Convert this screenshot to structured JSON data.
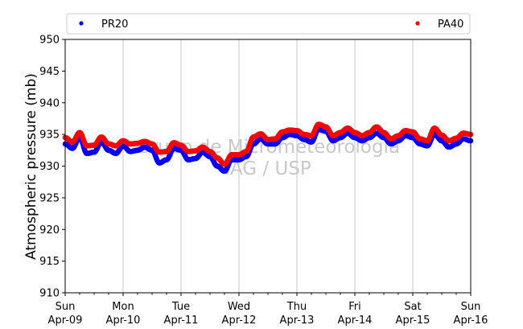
{
  "chart_data": {
    "type": "scatter",
    "ylabel": "Atmospheric pressure (mb)",
    "ylim": [
      910,
      950
    ],
    "yticks": [
      910,
      915,
      920,
      925,
      930,
      935,
      940,
      945,
      950
    ],
    "x_range_days": [
      0,
      7
    ],
    "xticks": [
      {
        "day": 0,
        "line1": "Sun",
        "line2": "Apr-09"
      },
      {
        "day": 1,
        "line1": "Mon",
        "line2": "Apr-10"
      },
      {
        "day": 2,
        "line1": "Tue",
        "line2": "Apr-11"
      },
      {
        "day": 3,
        "line1": "Wed",
        "line2": "Apr-12"
      },
      {
        "day": 4,
        "line1": "Thu",
        "line2": "Apr-13"
      },
      {
        "day": 5,
        "line1": "Fri",
        "line2": "Apr-14"
      },
      {
        "day": 6,
        "line1": "Sat",
        "line2": "Apr-15"
      },
      {
        "day": 7,
        "line1": "Sun",
        "line2": "Apr-16"
      }
    ],
    "grid": "vertical",
    "legend_position": "top",
    "watermark": [
      "Grupo de Micrometeorologia",
      "IAG / USP"
    ],
    "series": [
      {
        "name": "PR20",
        "color": "#0000ff",
        "points": [
          [
            0,
            933.5
          ],
          [
            0.125,
            932.8
          ],
          [
            0.25,
            934.5
          ],
          [
            0.375,
            932.0
          ],
          [
            0.5,
            932.2
          ],
          [
            0.625,
            933.8
          ],
          [
            0.75,
            932.5
          ],
          [
            0.875,
            932.0
          ],
          [
            1.0,
            933.2
          ],
          [
            1.125,
            932.3
          ],
          [
            1.25,
            932.5
          ],
          [
            1.375,
            933.0
          ],
          [
            1.5,
            932.5
          ],
          [
            1.625,
            930.5
          ],
          [
            1.75,
            931.0
          ],
          [
            1.875,
            932.8
          ],
          [
            2.0,
            932.5
          ],
          [
            2.125,
            931.0
          ],
          [
            2.25,
            931.2
          ],
          [
            2.375,
            932.2
          ],
          [
            2.5,
            931.5
          ],
          [
            2.625,
            930.0
          ],
          [
            2.75,
            929.2
          ],
          [
            2.875,
            931.0
          ],
          [
            3.0,
            931.0
          ],
          [
            3.125,
            931.5
          ],
          [
            3.25,
            933.5
          ],
          [
            3.375,
            934.3
          ],
          [
            3.5,
            933.5
          ],
          [
            3.625,
            933.5
          ],
          [
            3.75,
            934.5
          ],
          [
            3.875,
            935.0
          ],
          [
            4.0,
            934.8
          ],
          [
            4.125,
            934.2
          ],
          [
            4.25,
            933.8
          ],
          [
            4.375,
            935.8
          ],
          [
            4.5,
            935.5
          ],
          [
            4.625,
            934.0
          ],
          [
            4.75,
            934.5
          ],
          [
            4.875,
            935.2
          ],
          [
            5.0,
            934.5
          ],
          [
            5.125,
            934.0
          ],
          [
            5.25,
            934.5
          ],
          [
            5.375,
            935.2
          ],
          [
            5.5,
            934.5
          ],
          [
            5.625,
            933.5
          ],
          [
            5.75,
            934.0
          ],
          [
            5.875,
            934.8
          ],
          [
            6.0,
            934.5
          ],
          [
            6.125,
            933.5
          ],
          [
            6.25,
            933.2
          ],
          [
            6.375,
            935.0
          ],
          [
            6.5,
            934.0
          ],
          [
            6.625,
            933.0
          ],
          [
            6.75,
            933.5
          ],
          [
            6.875,
            934.3
          ],
          [
            7.0,
            934.0
          ]
        ]
      },
      {
        "name": "PA40",
        "color": "#ff0000",
        "points": [
          [
            0,
            934.5
          ],
          [
            0.125,
            933.8
          ],
          [
            0.25,
            935.3
          ],
          [
            0.375,
            933.2
          ],
          [
            0.5,
            933.3
          ],
          [
            0.625,
            934.6
          ],
          [
            0.75,
            933.5
          ],
          [
            0.875,
            933.2
          ],
          [
            1.0,
            934.0
          ],
          [
            1.125,
            933.5
          ],
          [
            1.25,
            933.6
          ],
          [
            1.375,
            933.9
          ],
          [
            1.5,
            933.5
          ],
          [
            1.625,
            932.2
          ],
          [
            1.75,
            932.3
          ],
          [
            1.875,
            933.7
          ],
          [
            2.0,
            933.3
          ],
          [
            2.125,
            932.3
          ],
          [
            2.25,
            932.4
          ],
          [
            2.375,
            933.0
          ],
          [
            2.5,
            932.3
          ],
          [
            2.625,
            931.3
          ],
          [
            2.75,
            930.3
          ],
          [
            2.875,
            931.8
          ],
          [
            3.0,
            931.8
          ],
          [
            3.125,
            932.3
          ],
          [
            3.25,
            934.6
          ],
          [
            3.375,
            935.1
          ],
          [
            3.5,
            934.2
          ],
          [
            3.625,
            934.3
          ],
          [
            3.75,
            935.4
          ],
          [
            3.875,
            935.7
          ],
          [
            4.0,
            935.6
          ],
          [
            4.125,
            935.0
          ],
          [
            4.25,
            934.8
          ],
          [
            4.375,
            936.6
          ],
          [
            4.5,
            936.2
          ],
          [
            4.625,
            934.8
          ],
          [
            4.75,
            935.3
          ],
          [
            4.875,
            936.0
          ],
          [
            5.0,
            935.3
          ],
          [
            5.125,
            934.8
          ],
          [
            5.25,
            935.3
          ],
          [
            5.375,
            936.2
          ],
          [
            5.5,
            935.3
          ],
          [
            5.625,
            934.3
          ],
          [
            5.75,
            934.8
          ],
          [
            5.875,
            935.6
          ],
          [
            6.0,
            935.4
          ],
          [
            6.125,
            934.3
          ],
          [
            6.25,
            934.0
          ],
          [
            6.375,
            936.0
          ],
          [
            6.5,
            934.9
          ],
          [
            6.625,
            934.0
          ],
          [
            6.75,
            934.4
          ],
          [
            6.875,
            935.2
          ],
          [
            7.0,
            935.0
          ]
        ]
      }
    ]
  }
}
